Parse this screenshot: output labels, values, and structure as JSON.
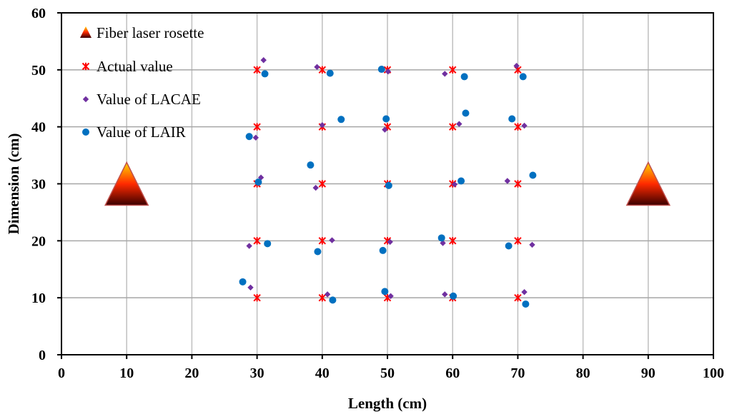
{
  "chart_data": {
    "type": "scatter",
    "xlabel": "Length (cm)",
    "ylabel": "Dimension (cm)",
    "xlim": [
      0,
      100
    ],
    "ylim": [
      0,
      60
    ],
    "xticks": [
      0,
      10,
      20,
      30,
      40,
      50,
      60,
      70,
      80,
      90,
      100
    ],
    "yticks": [
      0,
      10,
      20,
      30,
      40,
      50,
      60
    ],
    "grid": true,
    "legend_position": "top-left",
    "colors": {
      "actual": "#ff0000",
      "lacae": "#7030a0",
      "lair": "#0070c0",
      "triangle_top": "#ffd700",
      "triangle_mid": "#ff2a00",
      "triangle_bottom": "#3a0000",
      "triangle_edge": "#c0504d"
    },
    "rosettes": {
      "name": "Fiber laser rosette",
      "points": [
        {
          "x": 10,
          "y": 30
        },
        {
          "x": 90,
          "y": 30
        }
      ]
    },
    "series": [
      {
        "name": "Actual value",
        "marker": "asterisk",
        "x": [
          30,
          40,
          50,
          60,
          70,
          30,
          40,
          50,
          60,
          70,
          30,
          40,
          50,
          60,
          70,
          30,
          40,
          50,
          60,
          70,
          30,
          40,
          50,
          60,
          70
        ],
        "y": [
          50,
          50,
          50,
          50,
          50,
          40,
          40,
          40,
          40,
          40,
          30,
          30,
          30,
          30,
          30,
          20,
          20,
          20,
          20,
          20,
          10,
          10,
          10,
          10,
          10
        ]
      },
      {
        "name": "Value of LACAE",
        "marker": "diamond",
        "x": [
          31.0,
          39.2,
          50.1,
          58.8,
          69.8,
          29.8,
          40.0,
          49.6,
          61.0,
          71.0,
          30.6,
          39.0,
          50.2,
          60.3,
          68.4,
          28.8,
          41.5,
          50.4,
          58.5,
          72.2,
          29.0,
          40.8,
          50.5,
          58.8,
          71.0
        ],
        "y": [
          51.7,
          50.5,
          49.7,
          49.3,
          50.7,
          38.1,
          40.3,
          39.5,
          40.5,
          40.2,
          31.1,
          29.3,
          29.9,
          29.9,
          30.5,
          19.1,
          20.1,
          19.8,
          19.6,
          19.3,
          11.8,
          10.6,
          10.3,
          10.6,
          11.0
        ]
      },
      {
        "name": "Value of LAIR",
        "marker": "circle",
        "x": [
          31.2,
          41.2,
          49.1,
          61.8,
          70.8,
          28.8,
          42.9,
          49.8,
          62.0,
          69.1,
          30.2,
          38.2,
          50.2,
          61.3,
          72.3,
          31.6,
          39.3,
          49.3,
          58.3,
          68.6,
          27.8,
          41.6,
          49.6,
          60.1,
          71.2
        ],
        "y": [
          49.3,
          49.4,
          50.1,
          48.8,
          48.8,
          38.3,
          41.3,
          41.4,
          42.4,
          41.4,
          30.3,
          33.3,
          29.7,
          30.5,
          31.5,
          19.5,
          18.1,
          18.3,
          20.5,
          19.1,
          12.8,
          9.6,
          11.1,
          10.3,
          8.9
        ]
      }
    ]
  }
}
